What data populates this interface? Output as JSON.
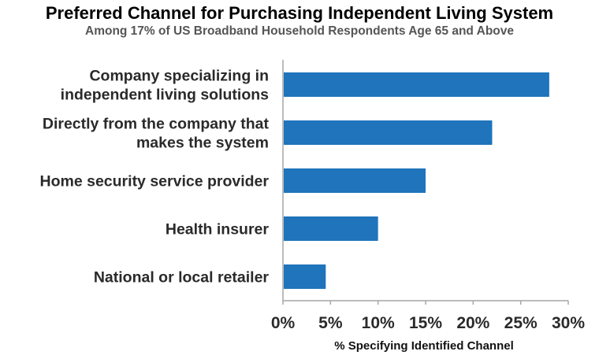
{
  "chart_data": {
    "type": "bar",
    "orientation": "horizontal",
    "title": "Preferred Channel for Purchasing Independent Living System",
    "subtitle": "Among 17% of US Broadband Household Respondents Age 65 and Above",
    "categories": [
      [
        "Company specializing in",
        "independent living solutions"
      ],
      [
        "Directly from the company that",
        "makes the system"
      ],
      [
        "Home security service provider"
      ],
      [
        "Health insurer"
      ],
      [
        "National or local retailer"
      ]
    ],
    "values": [
      28,
      22,
      15,
      10,
      4.5
    ],
    "xlabel": "% Specifying Identified Channel",
    "ylabel": "",
    "xlim": [
      0,
      30
    ],
    "xticks": [
      0,
      5,
      10,
      15,
      20,
      25,
      30
    ],
    "xtick_labels": [
      "0%",
      "5%",
      "10%",
      "15%",
      "20%",
      "25%",
      "30%"
    ],
    "grid": false,
    "bar_color": "#1f74bb",
    "axis_color": "#a6a6a6"
  }
}
